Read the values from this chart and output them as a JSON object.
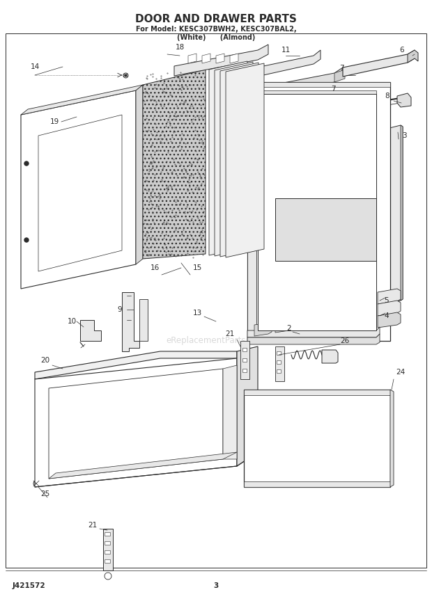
{
  "title_line1": "DOOR AND DRAWER PARTS",
  "title_line2": "For Model: KESC307BWH2, KESC307BAL2,",
  "title_line3": "(White)      (Almond)",
  "bg_color": "#f5f5f5",
  "diagram_color": "#2a2a2a",
  "watermark": "eReplacementParts.com",
  "footer_left": "J421572",
  "footer_center": "3",
  "lc": "#2a2a2a",
  "lw": 0.8
}
